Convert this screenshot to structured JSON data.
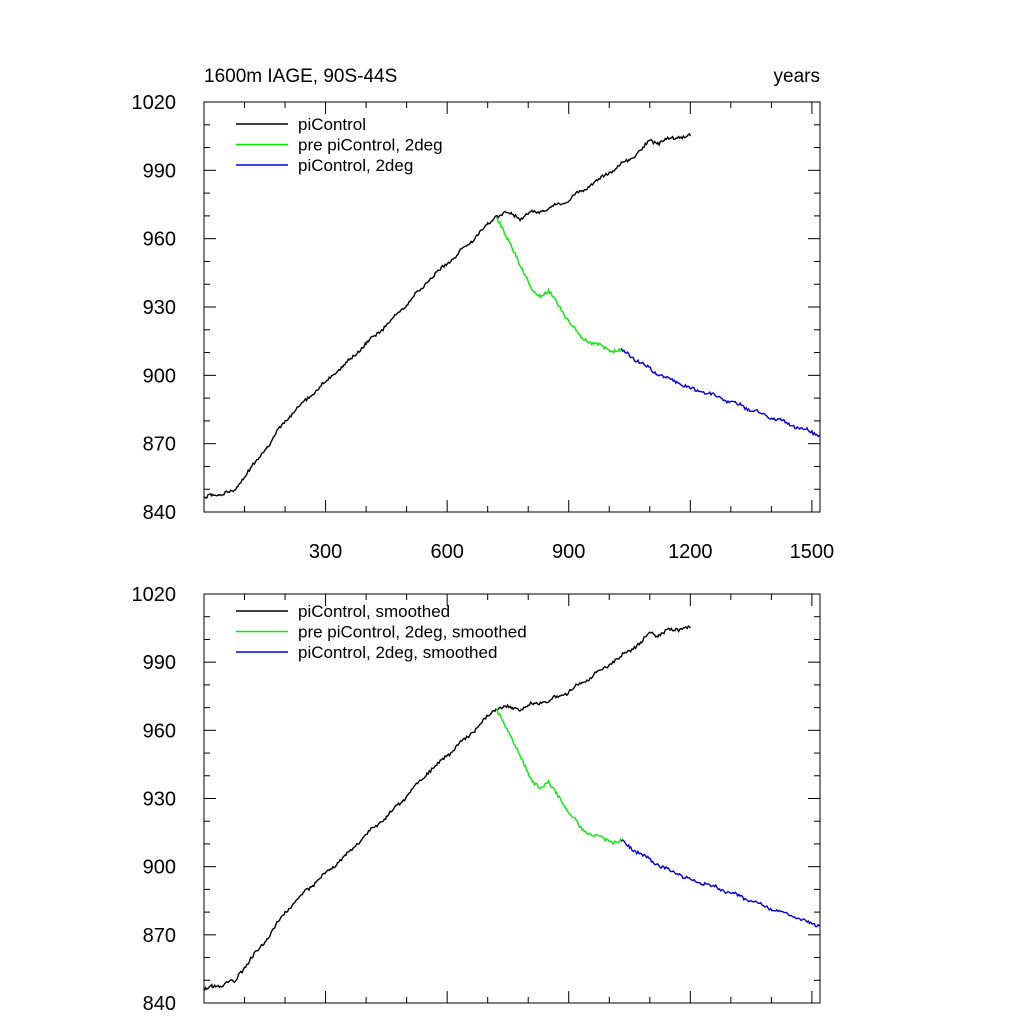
{
  "header": {
    "title": "1600m IAGE, 90S-44S",
    "right_label": "years"
  },
  "colors": {
    "piControl": "#000000",
    "pre_piControl_2deg": "#00ee00",
    "piControl_2deg": "#0000dd"
  },
  "chart_data": [
    {
      "type": "line",
      "title": "1600m IAGE, 90S-44S",
      "xlabel": "years",
      "ylabel": "",
      "xlim": [
        0,
        1520
      ],
      "ylim": [
        840,
        1020
      ],
      "xticks": [
        300,
        600,
        900,
        1200,
        1500
      ],
      "yticks": [
        840,
        870,
        900,
        930,
        960,
        990,
        1020
      ],
      "show_x_tick_labels": true,
      "legend_position": "top-left",
      "grid": false,
      "series": [
        {
          "name": "piControl",
          "color": "#000000",
          "x": [
            1,
            20,
            40,
            60,
            75,
            85,
            100,
            150,
            200,
            250,
            300,
            350,
            400,
            450,
            500,
            550,
            600,
            650,
            700,
            720,
            740,
            760,
            780,
            800,
            850,
            900,
            950,
            1000,
            1050,
            1080,
            1100,
            1120,
            1150,
            1180,
            1200
          ],
          "y": [
            846,
            847,
            848,
            849,
            849,
            852,
            856,
            867,
            880,
            889,
            897,
            905,
            914,
            922,
            931,
            941,
            949,
            957,
            966,
            970,
            971,
            971,
            969,
            971,
            973,
            977,
            983,
            989,
            995,
            999,
            1003,
            1002,
            1004,
            1005,
            1005
          ]
        },
        {
          "name": "pre piControl, 2deg",
          "color": "#00ee00",
          "x": [
            720,
            730,
            750,
            770,
            790,
            810,
            830,
            850,
            870,
            900,
            930,
            960,
            990,
            1010,
            1030
          ],
          "y": [
            970,
            967,
            959,
            953,
            945,
            937,
            935,
            937,
            932,
            924,
            917,
            914,
            912,
            911,
            911
          ]
        },
        {
          "name": "piControl, 2deg",
          "color": "#0000dd",
          "x": [
            1030,
            1050,
            1080,
            1110,
            1140,
            1170,
            1200,
            1230,
            1260,
            1290,
            1320,
            1350,
            1380,
            1410,
            1440,
            1470,
            1500,
            1520
          ],
          "y": [
            911,
            909,
            905,
            902,
            899,
            897,
            894,
            893,
            891,
            889,
            887,
            885,
            883,
            881,
            879,
            877,
            875,
            874
          ]
        }
      ]
    },
    {
      "type": "line",
      "title": "",
      "xlabel": "",
      "ylabel": "",
      "xlim": [
        0,
        1520
      ],
      "ylim": [
        840,
        1020
      ],
      "xticks": [
        300,
        600,
        900,
        1200,
        1500
      ],
      "yticks": [
        840,
        870,
        900,
        930,
        960,
        990,
        1020
      ],
      "show_x_tick_labels": false,
      "legend_position": "top-left",
      "grid": false,
      "series": [
        {
          "name": "piControl, smoothed",
          "color": "#000000",
          "x": [
            1,
            20,
            40,
            60,
            75,
            85,
            100,
            150,
            200,
            250,
            300,
            350,
            400,
            450,
            500,
            550,
            600,
            650,
            700,
            720,
            740,
            760,
            780,
            800,
            850,
            900,
            950,
            1000,
            1050,
            1080,
            1100,
            1120,
            1150,
            1180,
            1200
          ],
          "y": [
            846,
            847,
            848,
            849,
            849,
            852,
            856,
            867,
            880,
            889,
            897,
            905,
            914,
            922,
            931,
            941,
            949,
            957,
            966,
            970,
            970,
            970,
            969,
            971,
            973,
            977,
            983,
            989,
            995,
            999,
            1003,
            1002,
            1004,
            1005,
            1005
          ]
        },
        {
          "name": "pre piControl, 2deg, smoothed",
          "color": "#00ee00",
          "x": [
            720,
            730,
            750,
            770,
            790,
            810,
            830,
            850,
            870,
            900,
            930,
            960,
            990,
            1010,
            1030
          ],
          "y": [
            970,
            967,
            959,
            953,
            945,
            937,
            935,
            937,
            932,
            924,
            917,
            914,
            912,
            911,
            911
          ]
        },
        {
          "name": "piControl, 2deg, smoothed",
          "color": "#0000dd",
          "x": [
            1030,
            1050,
            1080,
            1110,
            1140,
            1170,
            1200,
            1230,
            1260,
            1290,
            1320,
            1350,
            1380,
            1410,
            1440,
            1470,
            1500,
            1520
          ],
          "y": [
            911,
            909,
            905,
            902,
            899,
            897,
            894,
            893,
            891,
            889,
            887,
            885,
            883,
            881,
            879,
            877,
            875,
            874
          ]
        }
      ]
    }
  ]
}
